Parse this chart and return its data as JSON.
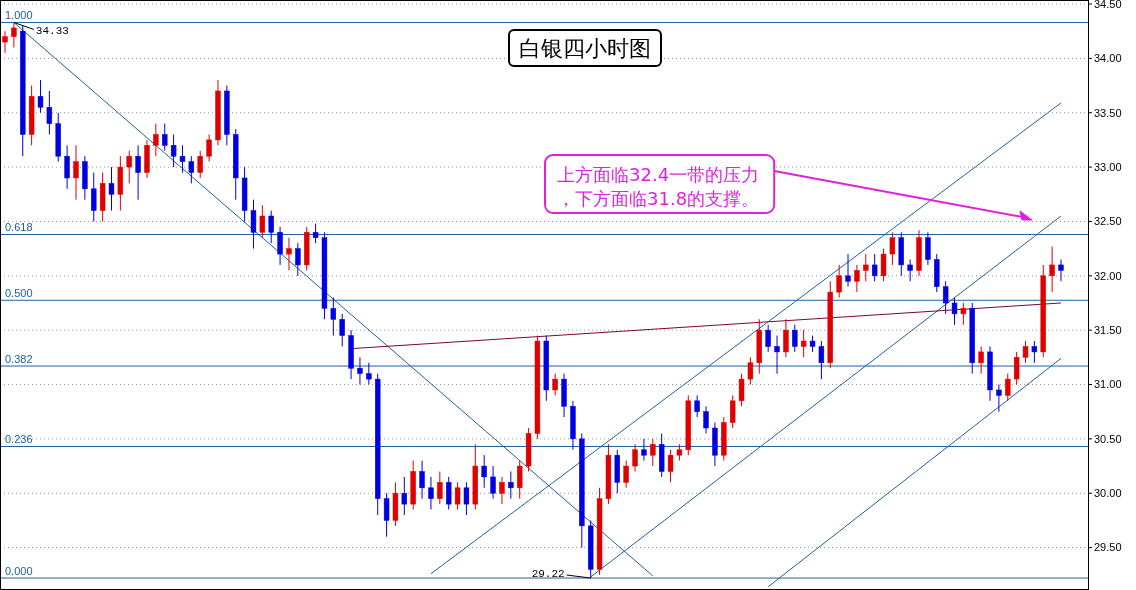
{
  "chart_data": {
    "type": "candlestick",
    "title": "白银四小时图",
    "categories": [
      null,
      null,
      null,
      null,
      null,
      null,
      null,
      null,
      null,
      null,
      null,
      null,
      null,
      null,
      null,
      null,
      null,
      null,
      null,
      null,
      null,
      null,
      null,
      null,
      null,
      null,
      null,
      null,
      null,
      null,
      null,
      null,
      null,
      null,
      null,
      null,
      null,
      null,
      null,
      null,
      null,
      null,
      null,
      null,
      null,
      null,
      null,
      null,
      null,
      null,
      null,
      null,
      null,
      null,
      null,
      null,
      null,
      null,
      null,
      null,
      null,
      null,
      null,
      null,
      null,
      null,
      null,
      null,
      null,
      null,
      null,
      null,
      null,
      null,
      null,
      null,
      null,
      null,
      null,
      null,
      null,
      null,
      null,
      null,
      null,
      null,
      null,
      null,
      null,
      null,
      null,
      null,
      null,
      null,
      null,
      null,
      null,
      null,
      null,
      null,
      null,
      null,
      null,
      null,
      null,
      null,
      null,
      null,
      null,
      null,
      null,
      null,
      null,
      null,
      null,
      null,
      null,
      null,
      null,
      null
    ],
    "ohlc": [
      [
        34.15,
        34.25,
        34.05,
        34.2
      ],
      [
        34.2,
        34.33,
        34.1,
        34.28
      ],
      [
        34.25,
        34.3,
        33.1,
        33.3
      ],
      [
        33.3,
        33.75,
        33.2,
        33.65
      ],
      [
        33.65,
        33.8,
        33.5,
        33.55
      ],
      [
        33.55,
        33.7,
        33.3,
        33.4
      ],
      [
        33.4,
        33.5,
        33.05,
        33.1
      ],
      [
        33.1,
        33.2,
        32.8,
        32.9
      ],
      [
        32.9,
        33.2,
        32.7,
        33.05
      ],
      [
        33.05,
        33.1,
        32.7,
        32.8
      ],
      [
        32.8,
        32.95,
        32.5,
        32.6
      ],
      [
        32.6,
        32.95,
        32.5,
        32.85
      ],
      [
        32.85,
        33.0,
        32.6,
        32.75
      ],
      [
        32.75,
        33.1,
        32.6,
        33.0
      ],
      [
        33.0,
        33.15,
        32.85,
        33.1
      ],
      [
        33.1,
        33.2,
        32.7,
        32.95
      ],
      [
        32.95,
        33.25,
        32.9,
        33.2
      ],
      [
        33.2,
        33.4,
        33.1,
        33.3
      ],
      [
        33.3,
        33.4,
        33.15,
        33.2
      ],
      [
        33.2,
        33.3,
        33.0,
        33.1
      ],
      [
        33.1,
        33.2,
        32.95,
        33.05
      ],
      [
        33.05,
        33.1,
        32.85,
        32.95
      ],
      [
        32.95,
        33.15,
        32.9,
        33.1
      ],
      [
        33.1,
        33.3,
        33.05,
        33.25
      ],
      [
        33.25,
        33.8,
        33.2,
        33.7
      ],
      [
        33.7,
        33.75,
        33.2,
        33.3
      ],
      [
        33.3,
        33.35,
        32.7,
        32.9
      ],
      [
        32.9,
        33.0,
        32.5,
        32.6
      ],
      [
        32.6,
        32.7,
        32.25,
        32.4
      ],
      [
        32.4,
        32.65,
        32.35,
        32.55
      ],
      [
        32.55,
        32.6,
        32.3,
        32.4
      ],
      [
        32.4,
        32.45,
        32.1,
        32.2
      ],
      [
        32.2,
        32.35,
        32.05,
        32.25
      ],
      [
        32.25,
        32.3,
        32.0,
        32.1
      ],
      [
        32.1,
        32.45,
        32.05,
        32.4
      ],
      [
        32.4,
        32.48,
        32.3,
        32.35
      ],
      [
        32.35,
        32.4,
        31.6,
        31.7
      ],
      [
        31.7,
        31.8,
        31.45,
        31.6
      ],
      [
        31.6,
        31.65,
        31.35,
        31.45
      ],
      [
        31.45,
        31.5,
        31.05,
        31.15
      ],
      [
        31.15,
        31.25,
        31.0,
        31.1
      ],
      [
        31.1,
        31.2,
        31.0,
        31.05
      ],
      [
        31.05,
        31.1,
        29.8,
        29.95
      ],
      [
        29.95,
        30.0,
        29.6,
        29.75
      ],
      [
        29.75,
        30.1,
        29.7,
        30.0
      ],
      [
        30.0,
        30.15,
        29.8,
        29.9
      ],
      [
        29.9,
        30.3,
        29.85,
        30.2
      ],
      [
        30.2,
        30.3,
        29.95,
        30.05
      ],
      [
        30.05,
        30.15,
        29.85,
        29.95
      ],
      [
        29.95,
        30.2,
        29.9,
        30.1
      ],
      [
        30.1,
        30.15,
        29.85,
        29.9
      ],
      [
        29.9,
        30.1,
        29.85,
        30.05
      ],
      [
        30.05,
        30.1,
        29.8,
        29.9
      ],
      [
        29.9,
        30.45,
        29.85,
        30.25
      ],
      [
        30.25,
        30.35,
        30.05,
        30.15
      ],
      [
        30.15,
        30.25,
        29.95,
        30.0
      ],
      [
        30.0,
        30.15,
        29.9,
        30.1
      ],
      [
        30.1,
        30.2,
        29.95,
        30.05
      ],
      [
        30.05,
        30.3,
        29.95,
        30.25
      ],
      [
        30.25,
        30.6,
        30.2,
        30.55
      ],
      [
        30.55,
        31.45,
        30.5,
        31.4
      ],
      [
        31.4,
        31.45,
        30.85,
        30.95
      ],
      [
        30.95,
        31.1,
        30.9,
        31.05
      ],
      [
        31.05,
        31.1,
        30.7,
        30.8
      ],
      [
        30.8,
        30.85,
        30.4,
        30.5
      ],
      [
        30.5,
        30.55,
        29.5,
        29.7
      ],
      [
        29.7,
        29.75,
        29.22,
        29.3
      ],
      [
        29.3,
        30.05,
        29.25,
        29.95
      ],
      [
        29.95,
        30.45,
        29.9,
        30.35
      ],
      [
        30.35,
        30.4,
        30.0,
        30.1
      ],
      [
        30.1,
        30.3,
        30.05,
        30.25
      ],
      [
        30.25,
        30.45,
        30.2,
        30.4
      ],
      [
        30.4,
        30.5,
        30.3,
        30.35
      ],
      [
        30.35,
        30.5,
        30.25,
        30.45
      ],
      [
        30.45,
        30.55,
        30.15,
        30.2
      ],
      [
        30.2,
        30.4,
        30.1,
        30.35
      ],
      [
        30.35,
        30.45,
        30.3,
        30.4
      ],
      [
        30.4,
        30.9,
        30.35,
        30.85
      ],
      [
        30.85,
        30.9,
        30.7,
        30.75
      ],
      [
        30.75,
        30.8,
        30.55,
        30.6
      ],
      [
        30.6,
        30.65,
        30.25,
        30.35
      ],
      [
        30.35,
        30.7,
        30.3,
        30.65
      ],
      [
        30.65,
        30.9,
        30.6,
        30.85
      ],
      [
        30.85,
        31.1,
        30.8,
        31.05
      ],
      [
        31.05,
        31.25,
        31.0,
        31.2
      ],
      [
        31.2,
        31.6,
        31.1,
        31.5
      ],
      [
        31.5,
        31.55,
        31.3,
        31.35
      ],
      [
        31.35,
        31.45,
        31.1,
        31.3
      ],
      [
        31.3,
        31.6,
        31.25,
        31.5
      ],
      [
        31.5,
        31.55,
        31.3,
        31.35
      ],
      [
        31.35,
        31.5,
        31.25,
        31.4
      ],
      [
        31.4,
        31.45,
        31.3,
        31.35
      ],
      [
        31.35,
        31.4,
        31.05,
        31.2
      ],
      [
        31.2,
        31.95,
        31.15,
        31.85
      ],
      [
        31.85,
        32.1,
        31.8,
        32.0
      ],
      [
        32.0,
        32.2,
        31.9,
        31.95
      ],
      [
        31.95,
        32.1,
        31.85,
        32.05
      ],
      [
        32.05,
        32.2,
        31.95,
        32.1
      ],
      [
        32.1,
        32.2,
        31.95,
        32.0
      ],
      [
        32.0,
        32.25,
        31.95,
        32.2
      ],
      [
        32.2,
        32.4,
        32.1,
        32.35
      ],
      [
        32.35,
        32.4,
        32.0,
        32.1
      ],
      [
        32.1,
        32.15,
        31.95,
        32.05
      ],
      [
        32.05,
        32.42,
        32.0,
        32.35
      ],
      [
        32.35,
        32.4,
        32.1,
        32.15
      ],
      [
        32.15,
        32.2,
        31.85,
        31.9
      ],
      [
        31.9,
        31.95,
        31.65,
        31.75
      ],
      [
        31.75,
        31.8,
        31.55,
        31.65
      ],
      [
        31.65,
        31.75,
        31.55,
        31.7
      ],
      [
        31.7,
        31.75,
        31.1,
        31.2
      ],
      [
        31.2,
        31.35,
        31.1,
        31.3
      ],
      [
        31.3,
        31.35,
        30.85,
        30.95
      ],
      [
        30.95,
        31.0,
        30.75,
        30.9
      ],
      [
        30.9,
        31.1,
        30.85,
        31.05
      ],
      [
        31.05,
        31.3,
        31.0,
        31.25
      ],
      [
        31.25,
        31.4,
        31.2,
        31.35
      ],
      [
        31.35,
        31.4,
        31.2,
        31.3
      ],
      [
        31.3,
        32.1,
        31.25,
        32.0
      ],
      [
        32.0,
        32.27,
        31.85,
        32.1
      ],
      [
        32.1,
        32.15,
        31.95,
        32.05
      ]
    ],
    "colors": [
      "#e00000",
      "#e00000",
      "#0000e0",
      "#e00000",
      "#0000e0",
      "#0000e0",
      "#0000e0",
      "#0000e0",
      "#e00000",
      "#0000e0",
      "#0000e0",
      "#e00000",
      "#0000e0",
      "#e00000",
      "#e00000",
      "#0000e0",
      "#e00000",
      "#e00000",
      "#0000e0",
      "#0000e0",
      "#0000e0",
      "#0000e0",
      "#e00000",
      "#e00000",
      "#e00000",
      "#0000e0",
      "#0000e0",
      "#0000e0",
      "#0000e0",
      "#e00000",
      "#0000e0",
      "#0000e0",
      "#e00000",
      "#0000e0",
      "#e00000",
      "#0000e0",
      "#0000e0",
      "#0000e0",
      "#0000e0",
      "#0000e0",
      "#0000e0",
      "#0000e0",
      "#0000e0",
      "#0000e0",
      "#e00000",
      "#0000e0",
      "#e00000",
      "#0000e0",
      "#0000e0",
      "#e00000",
      "#0000e0",
      "#e00000",
      "#0000e0",
      "#e00000",
      "#0000e0",
      "#0000e0",
      "#e00000",
      "#0000e0",
      "#e00000",
      "#e00000",
      "#e00000",
      "#0000e0",
      "#e00000",
      "#0000e0",
      "#0000e0",
      "#0000e0",
      "#0000e0",
      "#e00000",
      "#e00000",
      "#0000e0",
      "#e00000",
      "#e00000",
      "#0000e0",
      "#e00000",
      "#0000e0",
      "#e00000",
      "#e00000",
      "#e00000",
      "#0000e0",
      "#0000e0",
      "#0000e0",
      "#e00000",
      "#e00000",
      "#e00000",
      "#e00000",
      "#e00000",
      "#0000e0",
      "#0000e0",
      "#e00000",
      "#0000e0",
      "#e00000",
      "#0000e0",
      "#0000e0",
      "#e00000",
      "#e00000",
      "#0000e0",
      "#e00000",
      "#e00000",
      "#0000e0",
      "#e00000",
      "#e00000",
      "#0000e0",
      "#0000e0",
      "#e00000",
      "#0000e0",
      "#0000e0",
      "#0000e0",
      "#0000e0",
      "#e00000",
      "#0000e0",
      "#e00000",
      "#0000e0",
      "#0000e0",
      "#e00000",
      "#e00000",
      "#e00000",
      "#0000e0",
      "#e00000",
      "#e00000",
      "#0000e0"
    ],
    "series": [
      {
        "type": "line",
        "color": "#2060a0",
        "values": [
          null,
          34.33,
          null,
          null,
          null,
          null,
          null,
          null,
          null,
          null,
          null,
          null,
          null,
          null,
          null,
          null,
          null,
          null,
          null,
          null,
          null,
          null,
          null,
          null,
          null,
          null,
          null,
          null,
          null,
          null,
          null,
          null,
          null,
          null,
          null,
          null,
          null,
          null,
          null,
          null,
          null,
          null,
          null,
          null,
          null,
          null,
          null,
          null,
          null,
          null,
          null,
          null,
          null,
          null,
          null,
          null,
          null,
          null,
          null,
          null,
          null,
          null,
          null,
          null,
          null,
          null,
          null,
          null,
          null,
          null,
          null,
          null,
          null,
          29.24,
          null,
          null,
          null,
          null,
          null,
          null,
          null,
          null,
          null,
          null,
          null,
          null,
          null,
          null,
          null,
          null,
          null,
          null,
          null,
          null,
          null,
          null,
          null,
          null,
          null,
          null,
          null,
          null,
          null,
          null,
          null,
          null,
          null,
          null,
          null,
          null,
          null,
          null,
          null,
          null,
          null,
          null,
          null,
          null,
          null,
          null
        ]
      },
      {
        "type": "line",
        "color": "#2060a0",
        "values": [
          null,
          null,
          null,
          null,
          null,
          null,
          null,
          null,
          null,
          null,
          null,
          null,
          null,
          null,
          null,
          null,
          null,
          null,
          null,
          null,
          null,
          null,
          null,
          null,
          null,
          null,
          null,
          null,
          null,
          null,
          null,
          null,
          null,
          null,
          null,
          null,
          null,
          null,
          null,
          null,
          null,
          null,
          null,
          null,
          null,
          null,
          null,
          null,
          29.26,
          null,
          null,
          null,
          null,
          null,
          null,
          null,
          null,
          null,
          null,
          null,
          null,
          null,
          null,
          null,
          null,
          null,
          null,
          null,
          null,
          null,
          null,
          null,
          null,
          null,
          null,
          null,
          null,
          null,
          null,
          null,
          null,
          null,
          null,
          null,
          null,
          null,
          null,
          null,
          null,
          null,
          null,
          null,
          null,
          null,
          null,
          null,
          null,
          null,
          null,
          null,
          null,
          null,
          null,
          null,
          null,
          null,
          null,
          null,
          null,
          null,
          null,
          null,
          null,
          null,
          null,
          null,
          null,
          null,
          null,
          33.59
        ]
      },
      {
        "type": "line",
        "color": "#2060a0",
        "values": [
          null,
          null,
          null,
          null,
          null,
          null,
          null,
          null,
          null,
          null,
          null,
          null,
          null,
          null,
          null,
          null,
          null,
          null,
          null,
          null,
          null,
          null,
          null,
          null,
          null,
          null,
          null,
          null,
          null,
          null,
          null,
          null,
          null,
          null,
          null,
          null,
          null,
          null,
          null,
          null,
          null,
          null,
          null,
          null,
          null,
          null,
          null,
          null,
          null,
          null,
          null,
          null,
          null,
          null,
          null,
          null,
          null,
          null,
          null,
          null,
          null,
          null,
          null,
          null,
          null,
          null,
          29.23,
          null,
          null,
          null,
          null,
          null,
          null,
          null,
          null,
          null,
          null,
          null,
          null,
          null,
          null,
          null,
          null,
          null,
          null,
          null,
          null,
          null,
          null,
          null,
          null,
          null,
          null,
          null,
          null,
          null,
          null,
          null,
          null,
          null,
          null,
          null,
          null,
          null,
          null,
          null,
          null,
          null,
          null,
          null,
          null,
          null,
          null,
          null,
          null,
          null,
          null,
          null,
          null,
          32.55
        ]
      },
      {
        "type": "line",
        "color": "#2060a0",
        "values": [
          null,
          null,
          null,
          null,
          null,
          null,
          null,
          null,
          null,
          null,
          null,
          null,
          null,
          null,
          null,
          null,
          null,
          null,
          null,
          null,
          null,
          null,
          null,
          null,
          null,
          null,
          null,
          null,
          null,
          null,
          null,
          null,
          null,
          null,
          null,
          null,
          null,
          null,
          null,
          null,
          null,
          null,
          null,
          null,
          null,
          null,
          null,
          null,
          null,
          null,
          null,
          null,
          null,
          null,
          null,
          null,
          null,
          null,
          null,
          null,
          null,
          null,
          null,
          null,
          null,
          null,
          null,
          null,
          null,
          null,
          null,
          null,
          null,
          null,
          null,
          null,
          null,
          null,
          null,
          null,
          null,
          null,
          null,
          null,
          null,
          null,
          29.14,
          null,
          null,
          null,
          null,
          null,
          null,
          null,
          null,
          null,
          null,
          null,
          null,
          null,
          null,
          null,
          null,
          null,
          null,
          null,
          null,
          null,
          null,
          null,
          null,
          null,
          null,
          null,
          null,
          null,
          null,
          null,
          null,
          31.24
        ]
      },
      {
        "type": "line",
        "color": "#800040",
        "values": [
          null,
          null,
          null,
          null,
          null,
          null,
          null,
          null,
          null,
          null,
          null,
          null,
          null,
          null,
          null,
          null,
          null,
          null,
          null,
          null,
          null,
          null,
          null,
          null,
          null,
          null,
          null,
          null,
          null,
          null,
          null,
          null,
          null,
          null,
          null,
          null,
          null,
          null,
          null,
          31.33,
          null,
          null,
          null,
          null,
          null,
          null,
          null,
          null,
          null,
          null,
          null,
          null,
          null,
          null,
          null,
          null,
          null,
          null,
          null,
          null,
          null,
          null,
          null,
          null,
          null,
          null,
          null,
          null,
          null,
          null,
          null,
          null,
          null,
          null,
          null,
          null,
          null,
          null,
          null,
          null,
          null,
          null,
          null,
          null,
          null,
          null,
          null,
          null,
          null,
          null,
          null,
          null,
          null,
          null,
          null,
          null,
          null,
          null,
          null,
          null,
          null,
          null,
          null,
          null,
          null,
          null,
          null,
          null,
          null,
          null,
          null,
          null,
          null,
          null,
          null,
          null,
          null,
          null,
          null,
          31.75
        ]
      }
    ],
    "ylim": [
      29.11,
      34.5
    ],
    "yticks": [
      {
        "value": 29.5,
        "label": "29.50"
      },
      {
        "value": 30,
        "label": "30.00"
      },
      {
        "value": 30.5,
        "label": "30.50"
      },
      {
        "value": 31,
        "label": "31.00"
      },
      {
        "value": 31.5,
        "label": "31.50"
      },
      {
        "value": 32,
        "label": "32.00"
      },
      {
        "value": 32.5,
        "label": "32.50"
      },
      {
        "value": 33,
        "label": "33.00"
      },
      {
        "value": 33.5,
        "label": "33.50"
      },
      {
        "value": 34,
        "label": "34.00"
      },
      {
        "value": 34.5,
        "label": "34.50"
      }
    ],
    "tick_labels": "y",
    "grid": "y",
    "ref_lines": [
      {
        "axis": "y",
        "value": 34.33,
        "color": "#2060a0"
      },
      {
        "axis": "y",
        "value": 32.38,
        "color": "#2060a0"
      },
      {
        "axis": "y",
        "value": 31.775,
        "color": "#2060a0"
      },
      {
        "axis": "y",
        "value": 31.17,
        "color": "#2060a0"
      },
      {
        "axis": "y",
        "value": 30.43,
        "color": "#2060a0"
      },
      {
        "axis": "y",
        "value": 29.22,
        "color": "#2060a0"
      }
    ],
    "annotations": [
      {
        "text": "1.000",
        "y": 34.33
      },
      {
        "text": "0.618",
        "y": 32.38
      },
      {
        "text": "0.500",
        "y": 31.775
      },
      {
        "text": "0.382",
        "y": 31.17
      },
      {
        "text": "0.236",
        "y": 30.43
      },
      {
        "text": "0.000",
        "y": 29.22
      },
      {
        "text": "34.33",
        "y": 34.33
      },
      {
        "text": "29.22",
        "y": 29.22
      },
      "上方面临32.4一带的压力，下方面临31.8的支撑。"
    ]
  }
}
